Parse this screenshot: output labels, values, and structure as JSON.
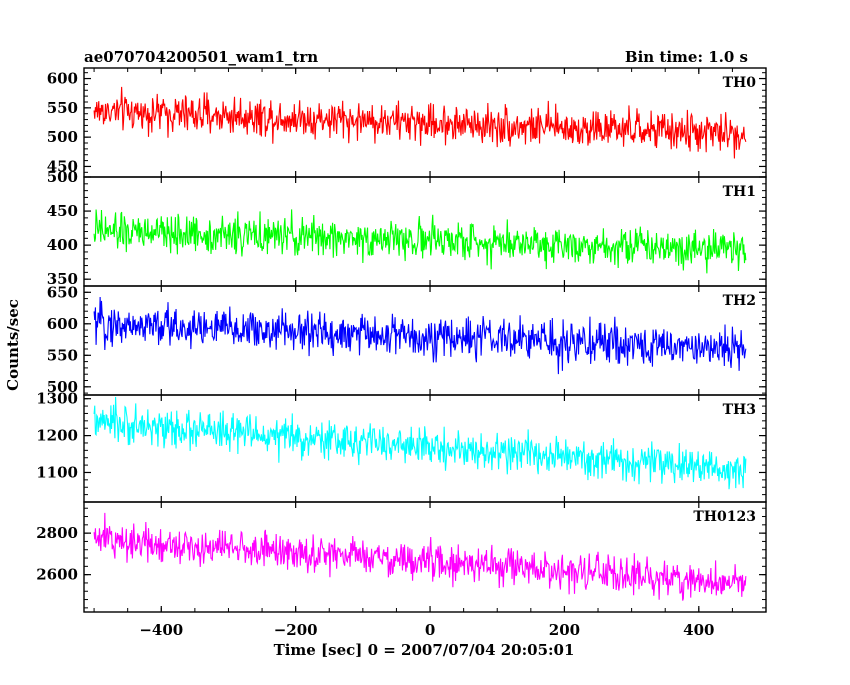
{
  "header": {
    "left_title": "ae070704200501_wam1_trn",
    "right_title": "Bin time: 1.0 s"
  },
  "chart_data": {
    "type": "line",
    "title": "ae070704200501_wam1_trn",
    "subtitle": "Bin time: 1.0 s",
    "xlabel": "Time [sec] 0 = 2007/07/04 20:05:01",
    "ylabel": "Counts/sec",
    "xlim": [
      -515,
      500
    ],
    "x_range": [
      -500,
      470
    ],
    "x_step": 1.0,
    "x_ticks": [
      -400,
      -200,
      0,
      200,
      400
    ],
    "x_tick_labels": [
      "−400",
      "−200",
      "0",
      "200",
      "400"
    ],
    "grid": false,
    "legend": "panel-label-top-right",
    "panels": [
      {
        "name": "TH0",
        "color": "#ff0000",
        "ylim": [
          432,
          618
        ],
        "y_ticks": [
          450,
          500,
          550,
          600
        ],
        "y_tick_labels": [
          "450",
          "500",
          "550",
          "600"
        ],
        "trend_start": 545,
        "trend_end": 505,
        "noise_amplitude": 26
      },
      {
        "name": "TH1",
        "color": "#00ff00",
        "ylim": [
          340,
          500
        ],
        "y_ticks": [
          350,
          400,
          450,
          500
        ],
        "y_tick_labels": [
          "350",
          "400",
          "450",
          "500"
        ],
        "trend_start": 420,
        "trend_end": 395,
        "noise_amplitude": 22
      },
      {
        "name": "TH2",
        "color": "#0000ff",
        "ylim": [
          487,
          660
        ],
        "y_ticks": [
          500,
          550,
          600,
          650
        ],
        "y_tick_labels": [
          "500",
          "550",
          "600",
          "650"
        ],
        "trend_start": 600,
        "trend_end": 560,
        "noise_amplitude": 26
      },
      {
        "name": "TH3",
        "color": "#00ffff",
        "ylim": [
          1020,
          1310
        ],
        "y_ticks": [
          1100,
          1200,
          1300
        ],
        "y_tick_labels": [
          "1100",
          "1200",
          "1300"
        ],
        "trend_start": 1235,
        "trend_end": 1105,
        "noise_amplitude": 40
      },
      {
        "name": "TH0123",
        "color": "#ff00ff",
        "ylim": [
          2420,
          2950
        ],
        "y_ticks": [
          2600,
          2800
        ],
        "y_tick_labels": [
          "2600",
          "2800"
        ],
        "trend_start": 2775,
        "trend_end": 2555,
        "noise_amplitude": 70
      }
    ]
  }
}
